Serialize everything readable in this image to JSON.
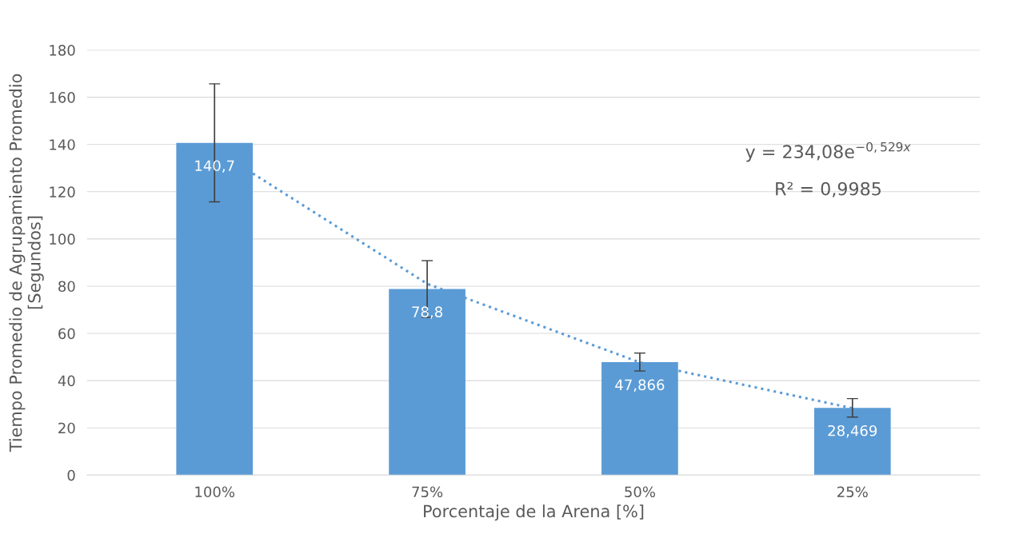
{
  "chart_data": {
    "type": "bar",
    "xlabel": "Porcentaje de la Arena [%]",
    "ylabel": "Tiempo Promedio de Agrupamiento Promedio\n[Segundos]",
    "categories": [
      "100%",
      "75%",
      "50%",
      "25%"
    ],
    "series": [
      {
        "color": "#5b9bd5",
        "values": [
          140.7,
          78.8,
          47.866,
          28.469
        ],
        "value_labels": [
          "140,7",
          "78,8",
          "47,866",
          "28,469"
        ],
        "errors": [
          25,
          12,
          3.8,
          3.9
        ]
      },
      {
        "type": "line",
        "color": "#5b9bd5",
        "line_style": "dotted",
        "values": [
          138,
          81,
          47.7,
          28.3
        ]
      }
    ],
    "ylim": [
      0,
      180
    ],
    "yticks": [
      0,
      20,
      40,
      60,
      80,
      100,
      120,
      140,
      160,
      180
    ],
    "grid": "y",
    "legend": false,
    "annotations": [
      "y = 234,08e$^{−0,529x}$",
      "R² = 0,9985"
    ]
  }
}
